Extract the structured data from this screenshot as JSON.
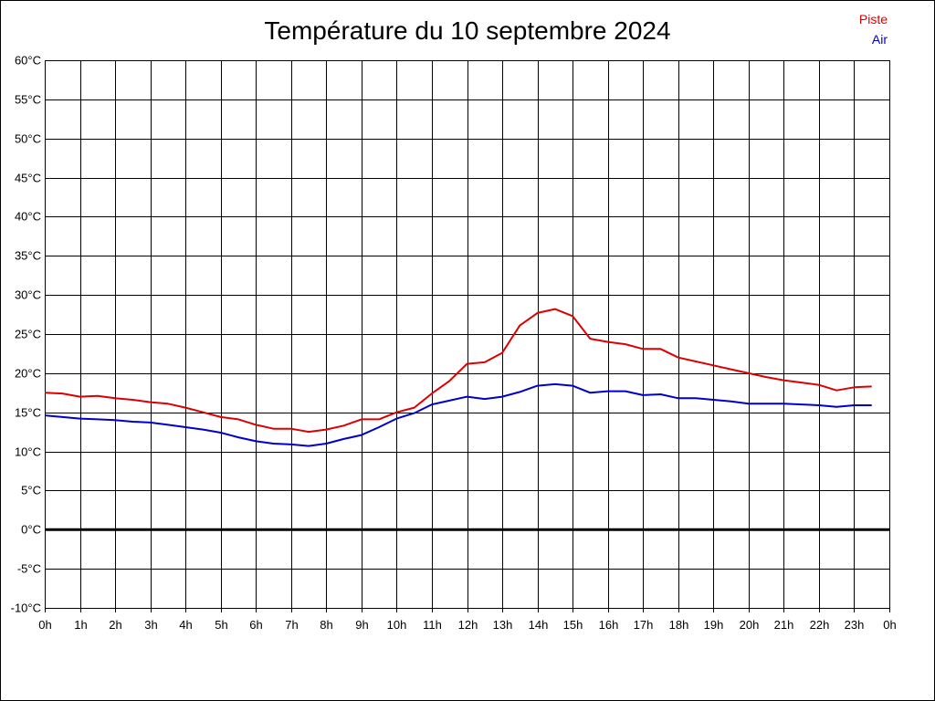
{
  "chart_data": {
    "type": "line",
    "title": "Température du 10 septembre 2024",
    "xlabel": "",
    "ylabel": "",
    "ylim": [
      -10,
      60
    ],
    "xlim": [
      0,
      24
    ],
    "y_ticks": [
      -10,
      -5,
      0,
      5,
      10,
      15,
      20,
      25,
      30,
      35,
      40,
      45,
      50,
      55,
      60
    ],
    "y_tick_labels": [
      "-10°C",
      "-5°C",
      "0°C",
      "5°C",
      "10°C",
      "15°C",
      "20°C",
      "25°C",
      "30°C",
      "35°C",
      "40°C",
      "45°C",
      "50°C",
      "55°C",
      "60°C"
    ],
    "x_ticks": [
      0,
      1,
      2,
      3,
      4,
      5,
      6,
      7,
      8,
      9,
      10,
      11,
      12,
      13,
      14,
      15,
      16,
      17,
      18,
      19,
      20,
      21,
      22,
      23,
      24
    ],
    "x_tick_labels": [
      "0h",
      "1h",
      "2h",
      "3h",
      "4h",
      "5h",
      "6h",
      "7h",
      "8h",
      "9h",
      "10h",
      "11h",
      "12h",
      "13h",
      "14h",
      "15h",
      "16h",
      "17h",
      "18h",
      "19h",
      "20h",
      "21h",
      "22h",
      "23h",
      "0h"
    ],
    "grid": true,
    "legend": "top-right",
    "colors": {
      "Piste": "#dd0000",
      "Air": "#0000cc",
      "zero_line": "#000000",
      "grid": "#000000"
    },
    "series": [
      {
        "name": "Piste",
        "x": [
          0,
          0.5,
          1,
          1.5,
          2,
          2.5,
          3,
          3.5,
          4,
          4.5,
          5,
          5.5,
          6,
          6.5,
          7,
          7.5,
          8,
          8.5,
          9,
          9.5,
          10,
          10.5,
          11,
          11.5,
          12,
          12.5,
          13,
          13.5,
          14,
          14.5,
          15,
          15.5,
          16,
          16.5,
          17,
          17.5,
          18,
          18.5,
          19,
          19.5,
          20,
          20.5,
          21,
          21.5,
          22,
          22.5,
          23,
          23.5
        ],
        "values": [
          17.5,
          17.4,
          17.0,
          17.1,
          16.8,
          16.6,
          16.3,
          16.1,
          15.6,
          15.0,
          14.4,
          14.1,
          13.4,
          12.9,
          12.9,
          12.5,
          12.8,
          13.3,
          14.1,
          14.1,
          15.0,
          15.6,
          17.4,
          19.0,
          21.2,
          21.4,
          22.6,
          26.1,
          27.7,
          28.2,
          27.3,
          24.4,
          24.0,
          23.7,
          23.1,
          23.1,
          22.0,
          21.5,
          21.0,
          20.5,
          20.0,
          19.5,
          19.1,
          18.8,
          18.5,
          17.8,
          18.2,
          18.3
        ]
      },
      {
        "name": "Air",
        "x": [
          0,
          0.5,
          1,
          1.5,
          2,
          2.5,
          3,
          3.5,
          4,
          4.5,
          5,
          5.5,
          6,
          6.5,
          7,
          7.5,
          8,
          8.5,
          9,
          9.5,
          10,
          10.5,
          11,
          11.5,
          12,
          12.5,
          13,
          13.5,
          14,
          14.5,
          15,
          15.5,
          16,
          16.5,
          17,
          17.5,
          18,
          18.5,
          19,
          19.5,
          20,
          20.5,
          21,
          21.5,
          22,
          22.5,
          23,
          23.5
        ],
        "values": [
          14.6,
          14.4,
          14.2,
          14.1,
          14.0,
          13.8,
          13.7,
          13.4,
          13.1,
          12.8,
          12.4,
          11.8,
          11.3,
          11.0,
          10.9,
          10.7,
          11.0,
          11.6,
          12.1,
          13.1,
          14.2,
          14.9,
          16.0,
          16.5,
          17.0,
          16.7,
          17.0,
          17.6,
          18.4,
          18.6,
          18.4,
          17.5,
          17.7,
          17.7,
          17.2,
          17.3,
          16.8,
          16.8,
          16.6,
          16.4,
          16.1,
          16.1,
          16.1,
          16.0,
          15.9,
          15.7,
          15.9,
          15.9
        ]
      }
    ]
  }
}
